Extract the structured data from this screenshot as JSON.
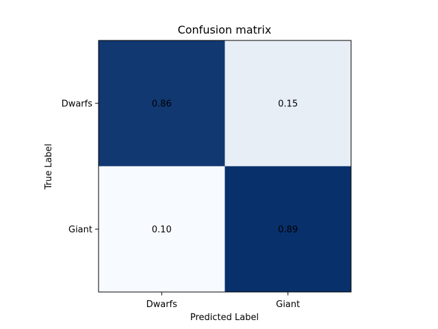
{
  "chart_data": {
    "type": "heatmap",
    "title": "Confusion matrix",
    "xlabel": "Predicted Label",
    "ylabel": "True Label",
    "x_categories": [
      "Dwarfs",
      "Giant"
    ],
    "y_categories": [
      "Dwarfs",
      "Giant"
    ],
    "values": [
      [
        0.86,
        0.15
      ],
      [
        0.1,
        0.89
      ]
    ],
    "value_labels": [
      [
        "0.86",
        "0.15"
      ],
      [
        "0.10",
        "0.89"
      ]
    ],
    "colormap": "Blues",
    "color_low": "#f7fbff",
    "color_high": "#08306b"
  }
}
